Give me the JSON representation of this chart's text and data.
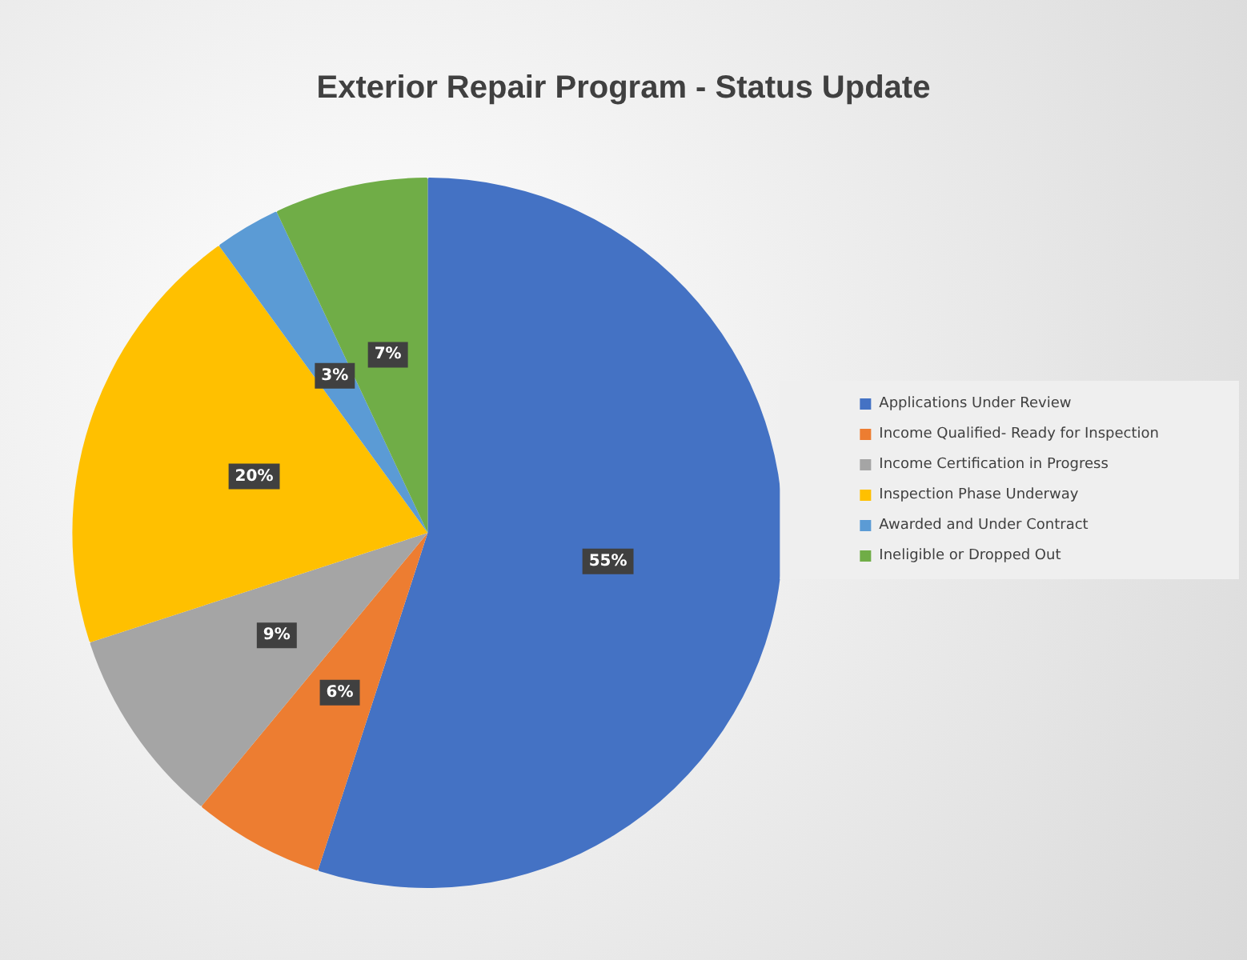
{
  "chart_data": {
    "type": "pie",
    "title": "Exterior Repair Program - Status Update",
    "categories": [
      "Applications Under Review",
      "Income Qualified- Ready for Inspection",
      "Income Certification in Progress",
      "Inspection Phase Underway",
      "Awarded and Under Contract",
      "Ineligible or Dropped Out"
    ],
    "values": [
      55,
      6,
      9,
      20,
      3,
      7
    ],
    "colors": [
      "#4472c4",
      "#ed7d31",
      "#a5a5a5",
      "#ffc000",
      "#5b9bd5",
      "#70ad47"
    ],
    "value_labels": [
      "55%",
      "6%",
      "9%",
      "20%",
      "3%",
      "7%"
    ],
    "legend": "right"
  }
}
